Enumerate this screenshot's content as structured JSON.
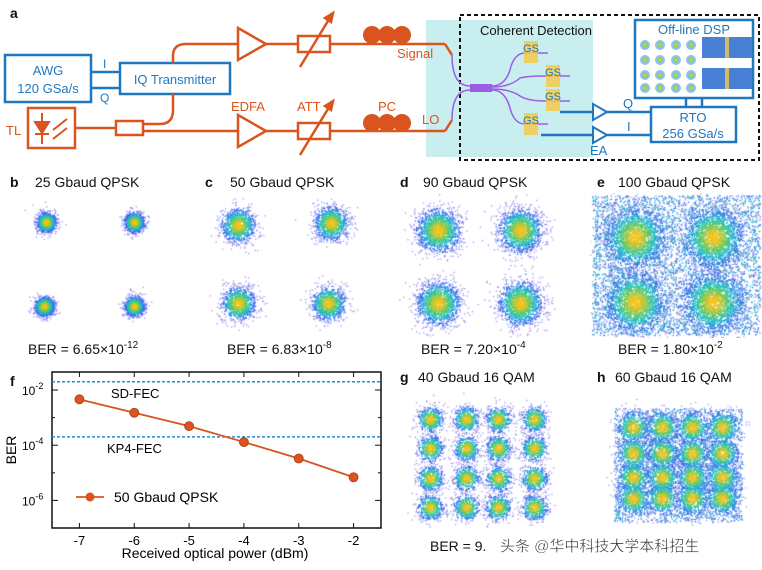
{
  "colors": {
    "orange": "#d9541e",
    "blue": "#1f77c0",
    "purple": "#9b5de5",
    "cyan_box": "#c9eef0",
    "fec_line": "#1f8fd6",
    "pad": "#f2c94c"
  },
  "panel_a": {
    "label": "a",
    "awg": {
      "line1": "AWG",
      "line2": "120 GSa/s"
    },
    "iq_i": "I",
    "iq_q": "Q",
    "iq_transmitter": "IQ Transmitter",
    "tl": "TL",
    "edfa": "EDFA",
    "att": "ATT",
    "pc": "PC",
    "signal": "Signal",
    "lo": "LO",
    "coherent_detection": "Coherent Detection",
    "pad_label": "GS",
    "offline_dsp": "Off-line DSP",
    "rto": {
      "line1": "RTO",
      "line2": "256 GSa/s"
    },
    "rto_q": "Q",
    "rto_i": "I",
    "ea": "EA"
  },
  "constellations": [
    {
      "label": "b",
      "title": "25 Gbaud QPSK",
      "ber_mantissa": "BER = 6.65×10",
      "ber_exp": "-12"
    },
    {
      "label": "c",
      "title": "50 Gbaud QPSK",
      "ber_mantissa": "BER = 6.83×10",
      "ber_exp": "-8"
    },
    {
      "label": "d",
      "title": "90 Gbaud QPSK",
      "ber_mantissa": "BER = 7.20×10",
      "ber_exp": "-4"
    },
    {
      "label": "e",
      "title": "100 Gbaud QPSK",
      "ber_mantissa": "BER = 1.80×10",
      "ber_exp": "-2"
    },
    {
      "label": "g",
      "title": "40 Gbaud 16 QAM",
      "ber_mantissa": "BER = 9.",
      "ber_exp": ""
    },
    {
      "label": "h",
      "title": "60 Gbaud 16 QAM",
      "ber_mantissa": "",
      "ber_exp": ""
    }
  ],
  "watermark": "头条 @华中科技大学本科招生",
  "chart_data": {
    "label": "f",
    "type": "line",
    "xlabel": "Received optical power (dBm)",
    "ylabel": "BER",
    "yscale": "log",
    "xlim": [
      -7.5,
      -1.5
    ],
    "ylim": [
      1e-07,
      0.045
    ],
    "x_ticks": [
      -7,
      -6,
      -5,
      -4,
      -3,
      -2
    ],
    "y_ticks": [
      {
        "value": 0.01,
        "base": "10",
        "exp": "-2"
      },
      {
        "value": 0.0001,
        "base": "10",
        "exp": "-4"
      },
      {
        "value": 1e-06,
        "base": "10",
        "exp": "-6"
      }
    ],
    "grid": false,
    "legend_position": "bottom-left",
    "series": [
      {
        "name": "50 Gbaud QPSK",
        "color": "#d9541e",
        "x": [
          -7,
          -6,
          -5,
          -4,
          -3,
          -2
        ],
        "y": [
          0.0046,
          0.0015,
          0.00049,
          0.00013,
          3.3e-05,
          6.9e-06
        ]
      }
    ],
    "thresholds": [
      {
        "name": "SD-FEC",
        "value": 0.02
      },
      {
        "name": "KP4-FEC",
        "value": 0.0002
      }
    ]
  }
}
